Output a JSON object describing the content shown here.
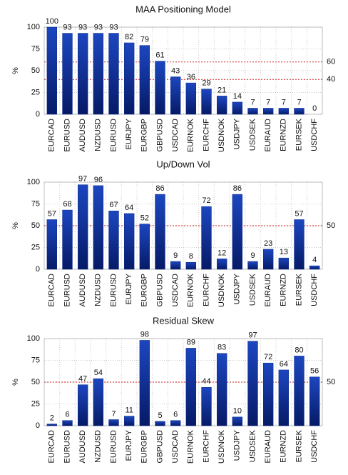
{
  "chart_data": [
    {
      "type": "bar",
      "title": "MAA Positioning Model",
      "ylabel": "%",
      "color": "#0a2a8c",
      "categories": [
        "EURCAD",
        "EURUSD",
        "AUDUSD",
        "NZDUSD",
        "EURUSD",
        "EURJPY",
        "EURGBP",
        "GBPUSD",
        "USDCAD",
        "EURNOK",
        "EURCHF",
        "USDNOK",
        "USDJPY",
        "USDSEK",
        "EURAUD",
        "EURNZD",
        "EURSEK",
        "USDCHF"
      ],
      "values": [
        100,
        93,
        93,
        93,
        93,
        82,
        79,
        61,
        43,
        36,
        29,
        21,
        14,
        7,
        7,
        7,
        7,
        0
      ],
      "ylim": [
        0,
        100
      ],
      "yticks": [
        0,
        25,
        50,
        75,
        100
      ],
      "ref_lines": [
        60,
        40
      ],
      "grid": true
    },
    {
      "type": "bar",
      "title": "Up/Down Vol",
      "ylabel": "%",
      "color": "#0a2a8c",
      "categories": [
        "EURCAD",
        "EURUSD",
        "AUDUSD",
        "NZDUSD",
        "EURUSD",
        "EURJPY",
        "EURGBP",
        "GBPUSD",
        "USDCAD",
        "EURNOK",
        "EURCHF",
        "USDNOK",
        "USDJPY",
        "USDSEK",
        "EURAUD",
        "EURNZD",
        "EURSEK",
        "USDCHF"
      ],
      "values": [
        57,
        68,
        97,
        96,
        67,
        64,
        52,
        86,
        9,
        8,
        72,
        12,
        86,
        9,
        23,
        13,
        57,
        4
      ],
      "ylim": [
        0,
        100
      ],
      "yticks": [
        0,
        25,
        50,
        75,
        100
      ],
      "ref_lines": [
        50
      ],
      "grid": true
    },
    {
      "type": "bar",
      "title": "Residual Skew",
      "ylabel": "%",
      "color": "#0a2a8c",
      "categories": [
        "EURCAD",
        "EURUSD",
        "AUDUSD",
        "NZDUSD",
        "EURUSD",
        "EURJPY",
        "EURGBP",
        "GBPUSD",
        "USDCAD",
        "EURNOK",
        "EURCHF",
        "USDNOK",
        "USDJPY",
        "USDSEK",
        "EURAUD",
        "EURNZD",
        "EURSEK",
        "USDCHF"
      ],
      "values": [
        2,
        6,
        47,
        54,
        7,
        11,
        98,
        5,
        6,
        89,
        44,
        83,
        10,
        97,
        72,
        64,
        80,
        56
      ],
      "ylim": [
        0,
        100
      ],
      "yticks": [
        0,
        25,
        50,
        75,
        100
      ],
      "ref_lines": [
        50
      ],
      "grid": true
    }
  ]
}
